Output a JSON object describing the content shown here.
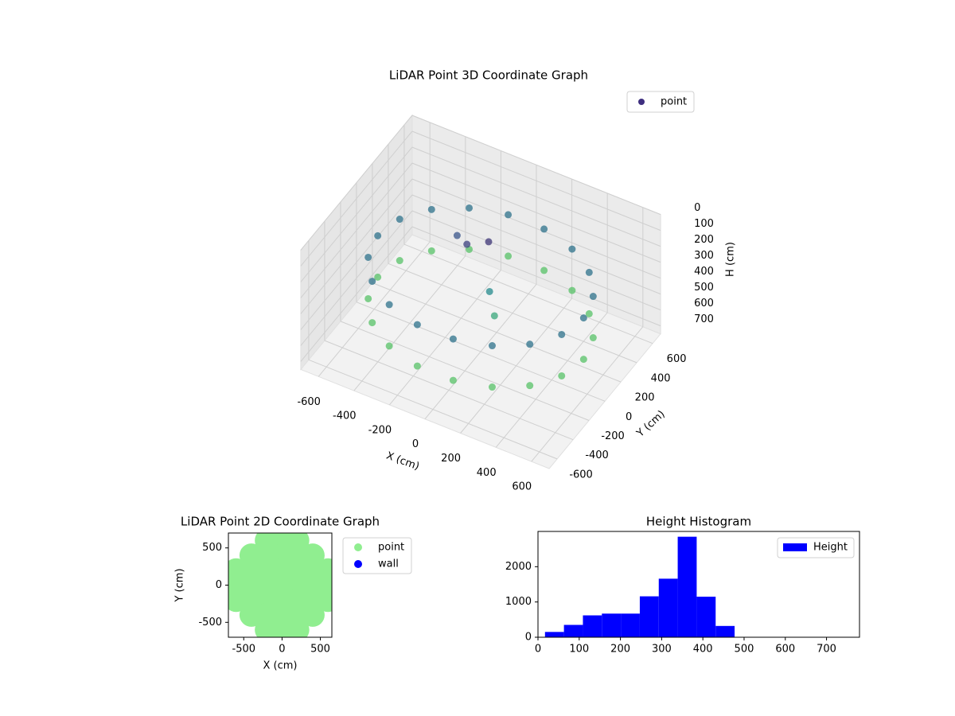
{
  "chart_data": [
    {
      "type": "scatter3d",
      "title": "LiDAR Point 3D Coordinate Graph",
      "xlabel": "X (cm)",
      "ylabel": "Y (cm)",
      "zlabel": "H (cm)",
      "xlim": [
        -700,
        700
      ],
      "ylim": [
        -700,
        700
      ],
      "zlim": [
        0,
        750
      ],
      "z_inverted": true,
      "xticks": [
        -600,
        -400,
        -200,
        0,
        200,
        400,
        600
      ],
      "yticks": [
        -600,
        -400,
        -200,
        0,
        200,
        400,
        600
      ],
      "zticks": [
        0,
        100,
        200,
        300,
        400,
        500,
        600,
        700
      ],
      "colormap": "viridis",
      "grid": true,
      "legend": "upper right",
      "series": [
        {
          "name": "point",
          "color": "#3e2f7f",
          "x": [
            580,
            545,
            444,
            290,
            101,
            -101,
            -290,
            -444,
            -545,
            -580,
            -545,
            -444,
            -290,
            -101,
            101,
            290,
            444,
            545,
            580,
            545,
            444,
            290,
            101,
            -101,
            -290,
            -444,
            -545,
            -580,
            -545,
            -444,
            -290,
            -101,
            101,
            290,
            444,
            545,
            -100,
            0,
            -200,
            50,
            100
          ],
          "y": [
            0,
            198,
            373,
            502,
            571,
            571,
            502,
            373,
            198,
            0,
            -198,
            -373,
            -502,
            -571,
            -571,
            -502,
            -373,
            -198,
            0,
            198,
            373,
            502,
            571,
            571,
            502,
            373,
            198,
            0,
            -198,
            -373,
            -502,
            -571,
            -571,
            -502,
            -373,
            -198,
            50,
            100,
            150,
            0,
            -50
          ],
          "z": [
            280,
            280,
            280,
            280,
            280,
            280,
            280,
            280,
            280,
            280,
            280,
            280,
            280,
            280,
            280,
            280,
            280,
            280,
            540,
            540,
            540,
            540,
            540,
            540,
            540,
            540,
            540,
            540,
            540,
            540,
            540,
            540,
            540,
            540,
            540,
            540,
            150,
            120,
            200,
            350,
            450
          ]
        }
      ]
    },
    {
      "type": "scatter",
      "title": "LiDAR Point 2D Coordinate Graph",
      "xlabel": "X (cm)",
      "ylabel": "Y (cm)",
      "xlim": [
        -700,
        650
      ],
      "ylim": [
        -700,
        700
      ],
      "xticks": [
        -500,
        0,
        500
      ],
      "yticks": [
        -500,
        0,
        500
      ],
      "legend": "outside right",
      "series": [
        {
          "name": "point",
          "color": "#90ee90",
          "x": [
            -200,
            0,
            200,
            -400,
            -200,
            0,
            200,
            400,
            -600,
            -400,
            -200,
            0,
            200,
            400,
            600,
            -600,
            -400,
            -200,
            0,
            200,
            400,
            600,
            -600,
            -400,
            -200,
            0,
            200,
            400,
            600,
            -400,
            -200,
            0,
            200,
            400,
            -200,
            0,
            200
          ],
          "y": [
            600,
            600,
            600,
            400,
            400,
            400,
            400,
            400,
            200,
            200,
            200,
            200,
            200,
            200,
            200,
            0,
            0,
            0,
            0,
            0,
            0,
            0,
            -200,
            -200,
            -200,
            -200,
            -200,
            -200,
            -200,
            -400,
            -400,
            -400,
            -400,
            -400,
            -600,
            -600,
            -600
          ]
        },
        {
          "name": "wall",
          "color": "#0000ff",
          "x": [],
          "y": []
        }
      ]
    },
    {
      "type": "histogram",
      "title": "Height Histogram",
      "bins": [
        17,
        63,
        109,
        155,
        201,
        247,
        293,
        339,
        385,
        431,
        477
      ],
      "xlim": [
        0,
        780
      ],
      "ylim": [
        0,
        3000
      ],
      "xticks": [
        0,
        100,
        200,
        300,
        400,
        500,
        600,
        700
      ],
      "yticks": [
        0,
        1000,
        2000
      ],
      "legend": "upper right",
      "series": [
        {
          "name": "Height",
          "color": "#0000ff",
          "counts": [
            150,
            350,
            620,
            670,
            670,
            1160,
            1660,
            2850,
            1150,
            320
          ]
        }
      ]
    }
  ]
}
